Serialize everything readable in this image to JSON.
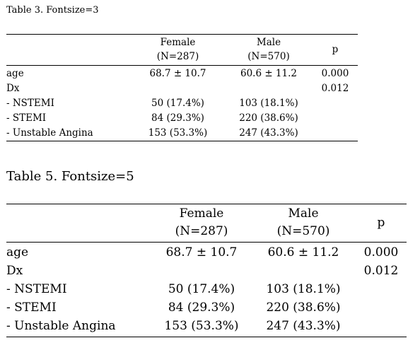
{
  "table3": {
    "caption": "Table 3. Fontsize=3",
    "headers": {
      "female_line1": "Female",
      "female_line2": "(N=287)",
      "male_line1": "Male",
      "male_line2": "(N=570)",
      "p": "p"
    },
    "rows": [
      {
        "label": "age",
        "female": "68.7 ± 10.7",
        "male": "60.6 ± 11.2",
        "p": "0.000"
      },
      {
        "label": "Dx",
        "female": "",
        "male": "",
        "p": "0.012"
      },
      {
        "label": "- NSTEMI",
        "female": "50 (17.4%)",
        "male": "103 (18.1%)",
        "p": ""
      },
      {
        "label": "- STEMI",
        "female": "84 (29.3%)",
        "male": "220 (38.6%)",
        "p": ""
      },
      {
        "label": "- Unstable Angina",
        "female": "153 (53.3%)",
        "male": "247 (43.3%)",
        "p": ""
      }
    ]
  },
  "table5": {
    "caption": "Table 5. Fontsize=5",
    "headers": {
      "female_line1": "Female",
      "female_line2": "(N=287)",
      "male_line1": "Male",
      "male_line2": "(N=570)",
      "p": "p"
    },
    "rows": [
      {
        "label": "age",
        "female": "68.7 ± 10.7",
        "male": "60.6 ± 11.2",
        "p": "0.000"
      },
      {
        "label": "Dx",
        "female": "",
        "male": "",
        "p": "0.012"
      },
      {
        "label": "- NSTEMI",
        "female": "50 (17.4%)",
        "male": "103 (18.1%)",
        "p": ""
      },
      {
        "label": "- STEMI",
        "female": "84 (29.3%)",
        "male": "220 (38.6%)",
        "p": ""
      },
      {
        "label": "- Unstable Angina",
        "female": "153 (53.3%)",
        "male": "247 (43.3%)",
        "p": ""
      }
    ]
  }
}
